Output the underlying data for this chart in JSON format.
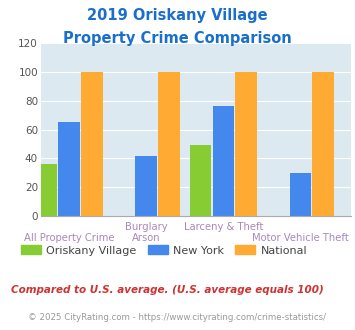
{
  "title_line1": "2019 Oriskany Village",
  "title_line2": "Property Crime Comparison",
  "title_color": "#1a6fcc",
  "x_labels_top": [
    "",
    "Burglary",
    "Larceny & Theft",
    ""
  ],
  "x_labels_bottom": [
    "All Property Crime",
    "Arson",
    "",
    "Motor Vehicle Theft"
  ],
  "series": {
    "Oriskany Village": [
      36,
      0,
      49,
      0
    ],
    "New York": [
      65,
      42,
      76,
      30
    ],
    "National": [
      100,
      100,
      100,
      100
    ]
  },
  "colors": {
    "Oriskany Village": "#88cc33",
    "New York": "#4488ee",
    "National": "#ffaa33"
  },
  "ylim": [
    0,
    120
  ],
  "yticks": [
    0,
    20,
    40,
    60,
    80,
    100,
    120
  ],
  "bg_color": "#dce9f0",
  "fig_bg": "#ffffff",
  "footnote1": "Compared to U.S. average. (U.S. average equals 100)",
  "footnote2": "© 2025 CityRating.com - https://www.cityrating.com/crime-statistics/",
  "footnote1_color": "#cc3333",
  "footnote2_color": "#999999",
  "legend_labels": [
    "Oriskany Village",
    "New York",
    "National"
  ],
  "label_color": "#aa88bb"
}
